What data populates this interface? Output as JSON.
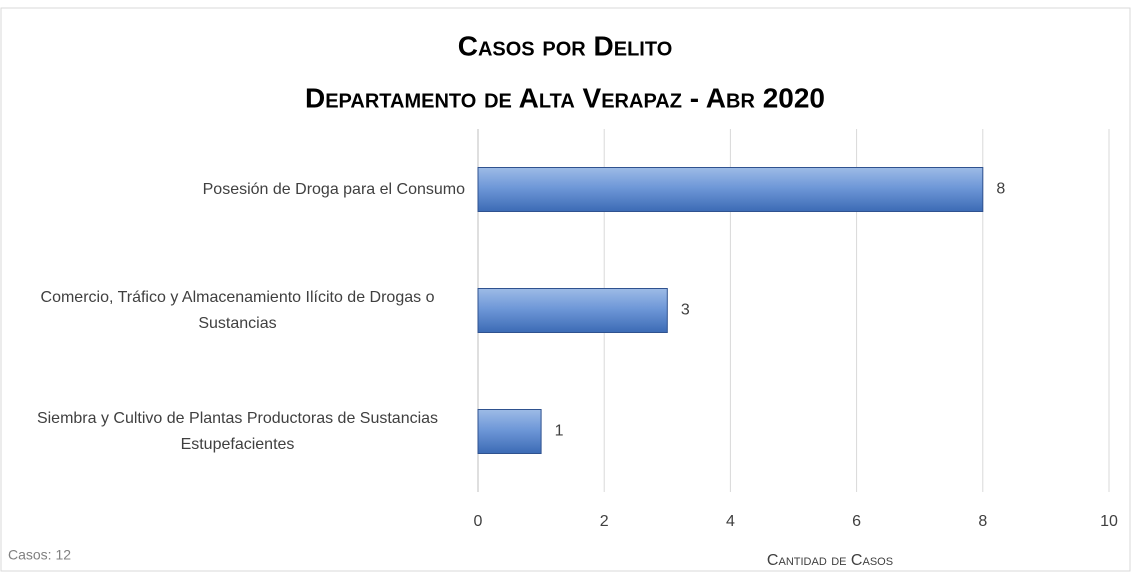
{
  "chart_data": {
    "type": "bar",
    "orientation": "horizontal",
    "title": "Casos por Delito",
    "subtitle": "Departamento de Alta Verapaz - Abr 2020",
    "categories": [
      "Posesión de Droga para el Consumo",
      "Comercio, Tráfico y Almacenamiento Ilícito de Drogas o Sustancias",
      "Siembra y Cultivo de Plantas Productoras de Sustancias Estupefacientes"
    ],
    "values": [
      8,
      3,
      1
    ],
    "color": "#4f81bd",
    "xlim": [
      0,
      10
    ],
    "xticks": [
      0,
      2,
      4,
      6,
      8,
      10
    ],
    "xlabel": "Cantidad de Casos",
    "annotation": "Casos: 12",
    "grid": true
  }
}
